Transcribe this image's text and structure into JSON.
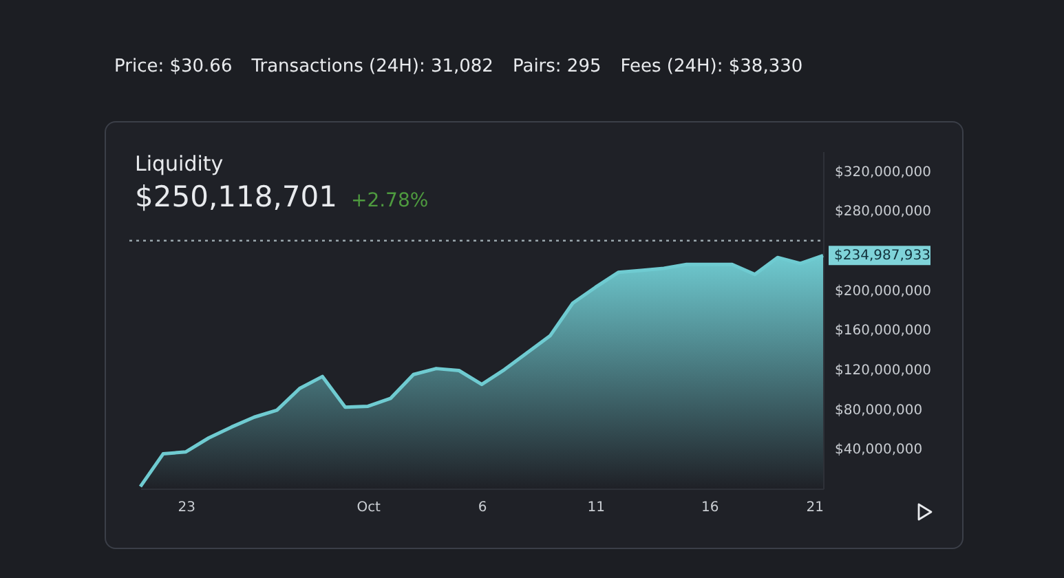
{
  "chart_data": {
    "type": "area",
    "title": "Liquidity",
    "subtitle": "$250,118,701",
    "annotations": [
      "Price: $30.66",
      "Transactions (24H): 31,082",
      "Pairs: 295",
      "Fees (24H): $38,330",
      "+2.78%",
      {
        "text": "$234,987,933",
        "x": "--10-21",
        "y": 234987933
      }
    ],
    "x": [
      "--09-21",
      "--09-22",
      "--09-23",
      "--09-24",
      "--09-25",
      "--09-26",
      "--09-27",
      "--09-28",
      "--09-29",
      "--09-30",
      "--10-01",
      "--10-02",
      "--10-03",
      "--10-04",
      "--10-05",
      "--10-06",
      "--10-07",
      "--10-08",
      "--10-09",
      "--10-10",
      "--10-11",
      "--10-12",
      "--10-13",
      "--10-14",
      "--10-15",
      "--10-16",
      "--10-17",
      "--10-18",
      "--10-19",
      "--10-20",
      "--10-21"
    ],
    "series": [
      {
        "color": "#6fcbd1",
        "values": [
          2000000,
          35000000,
          37000000,
          51000000,
          62000000,
          72000000,
          79000000,
          101000000,
          113000000,
          82000000,
          83000000,
          91000000,
          115000000,
          121000000,
          119000000,
          105000000,
          120000000,
          137000000,
          154000000,
          187000000,
          203000000,
          218000000,
          220000000,
          222000000,
          226000000,
          226000000,
          226000000,
          216000000,
          233000000,
          227000000,
          234987933
        ]
      }
    ],
    "xticks": [
      {
        "value": "--09-23",
        "label": "23"
      },
      {
        "value": "--10-01",
        "label": "Oct"
      },
      {
        "value": "--10-06",
        "label": "6"
      },
      {
        "value": "--10-11",
        "label": "11"
      },
      {
        "value": "--10-16",
        "label": "16"
      },
      {
        "value": "--10-21",
        "label": "21"
      }
    ],
    "xlim": [
      "--09-21",
      "--10-21"
    ],
    "ylim": [
      0,
      340000000
    ],
    "yticks": [
      {
        "value": 40000000,
        "label": "$40,000,000"
      },
      {
        "value": 80000000,
        "label": "$80,000,000"
      },
      {
        "value": 120000000,
        "label": "$120,000,000"
      },
      {
        "value": 160000000,
        "label": "$160,000,000"
      },
      {
        "value": 200000000,
        "label": "$200,000,000"
      },
      {
        "value": 280000000,
        "label": "$280,000,000"
      },
      {
        "value": 320000000,
        "label": "$320,000,000"
      }
    ],
    "ref_lines": [
      {
        "axis": "y",
        "value": 250000000,
        "color": "#9aa7ad",
        "line_style": "dotted"
      }
    ],
    "grid": false
  }
}
